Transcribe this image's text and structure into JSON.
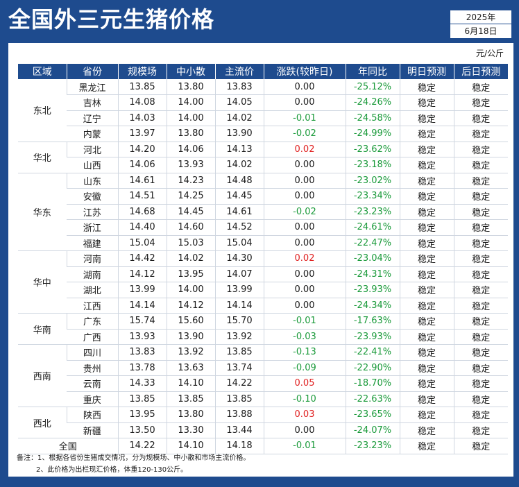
{
  "title": "全国外三元生猪价格",
  "date": {
    "year": "2025年",
    "day": "6月18日"
  },
  "unit": "元/公斤",
  "headers": [
    "区域",
    "省份",
    "规模场",
    "中小散",
    "主流价",
    "涨跌(较昨日)",
    "年同比",
    "明日预测",
    "后日预测"
  ],
  "regions": [
    {
      "name": "东北",
      "rows": [
        [
          "黑龙江",
          "13.85",
          "13.80",
          "13.83",
          "0.00",
          "-25.12%",
          "稳定",
          "稳定"
        ],
        [
          "吉林",
          "14.08",
          "14.00",
          "14.05",
          "0.00",
          "-24.26%",
          "稳定",
          "稳定"
        ],
        [
          "辽宁",
          "14.03",
          "14.00",
          "14.02",
          "-0.01",
          "-24.58%",
          "稳定",
          "稳定"
        ],
        [
          "内蒙",
          "13.97",
          "13.80",
          "13.90",
          "-0.02",
          "-24.99%",
          "稳定",
          "稳定"
        ]
      ]
    },
    {
      "name": "华北",
      "rows": [
        [
          "河北",
          "14.20",
          "14.06",
          "14.13",
          "0.02",
          "-23.62%",
          "稳定",
          "稳定"
        ],
        [
          "山西",
          "14.06",
          "13.93",
          "14.02",
          "0.00",
          "-23.18%",
          "稳定",
          "稳定"
        ]
      ]
    },
    {
      "name": "华东",
      "rows": [
        [
          "山东",
          "14.61",
          "14.23",
          "14.48",
          "0.00",
          "-23.02%",
          "稳定",
          "稳定"
        ],
        [
          "安徽",
          "14.51",
          "14.25",
          "14.45",
          "0.00",
          "-23.34%",
          "稳定",
          "稳定"
        ],
        [
          "江苏",
          "14.68",
          "14.45",
          "14.61",
          "-0.02",
          "-23.23%",
          "稳定",
          "稳定"
        ],
        [
          "浙江",
          "14.40",
          "14.60",
          "14.52",
          "0.00",
          "-24.61%",
          "稳定",
          "稳定"
        ],
        [
          "福建",
          "15.04",
          "15.03",
          "15.04",
          "0.00",
          "-22.47%",
          "稳定",
          "稳定"
        ]
      ]
    },
    {
      "name": "华中",
      "rows": [
        [
          "河南",
          "14.42",
          "14.02",
          "14.30",
          "0.02",
          "-23.04%",
          "稳定",
          "稳定"
        ],
        [
          "湖南",
          "14.12",
          "13.95",
          "14.07",
          "0.00",
          "-24.31%",
          "稳定",
          "稳定"
        ],
        [
          "湖北",
          "13.99",
          "14.00",
          "13.99",
          "0.00",
          "-23.93%",
          "稳定",
          "稳定"
        ],
        [
          "江西",
          "14.14",
          "14.12",
          "14.14",
          "0.00",
          "-24.34%",
          "稳定",
          "稳定"
        ]
      ]
    },
    {
      "name": "华南",
      "rows": [
        [
          "广东",
          "15.74",
          "15.60",
          "15.70",
          "-0.01",
          "-17.63%",
          "稳定",
          "稳定"
        ],
        [
          "广西",
          "13.93",
          "13.90",
          "13.92",
          "-0.03",
          "-23.93%",
          "稳定",
          "稳定"
        ]
      ]
    },
    {
      "name": "西南",
      "rows": [
        [
          "四川",
          "13.83",
          "13.92",
          "13.85",
          "-0.13",
          "-22.41%",
          "稳定",
          "稳定"
        ],
        [
          "贵州",
          "13.78",
          "13.63",
          "13.74",
          "-0.09",
          "-22.90%",
          "稳定",
          "稳定"
        ],
        [
          "云南",
          "14.33",
          "14.10",
          "14.22",
          "0.05",
          "-18.70%",
          "稳定",
          "稳定"
        ],
        [
          "重庆",
          "13.85",
          "13.85",
          "13.85",
          "-0.10",
          "-22.63%",
          "稳定",
          "稳定"
        ]
      ]
    },
    {
      "name": "西北",
      "rows": [
        [
          "陕西",
          "13.95",
          "13.80",
          "13.88",
          "0.03",
          "-23.65%",
          "稳定",
          "稳定"
        ],
        [
          "新疆",
          "13.50",
          "13.30",
          "13.44",
          "0.00",
          "-24.07%",
          "稳定",
          "稳定"
        ]
      ]
    }
  ],
  "national": [
    "全国",
    "14.22",
    "14.10",
    "14.18",
    "-0.01",
    "-23.23%",
    "稳定",
    "稳定"
  ],
  "notes": [
    "备注：1、根据各省份生猪成交情况，分为规模场、中小散和市场主流价格。",
    "2、此价格为出栏现汇价格，体重120-130公斤。"
  ],
  "colors": {
    "header_bg": "#1e4b8e",
    "up": "#e02020",
    "down": "#1a9a3a"
  }
}
